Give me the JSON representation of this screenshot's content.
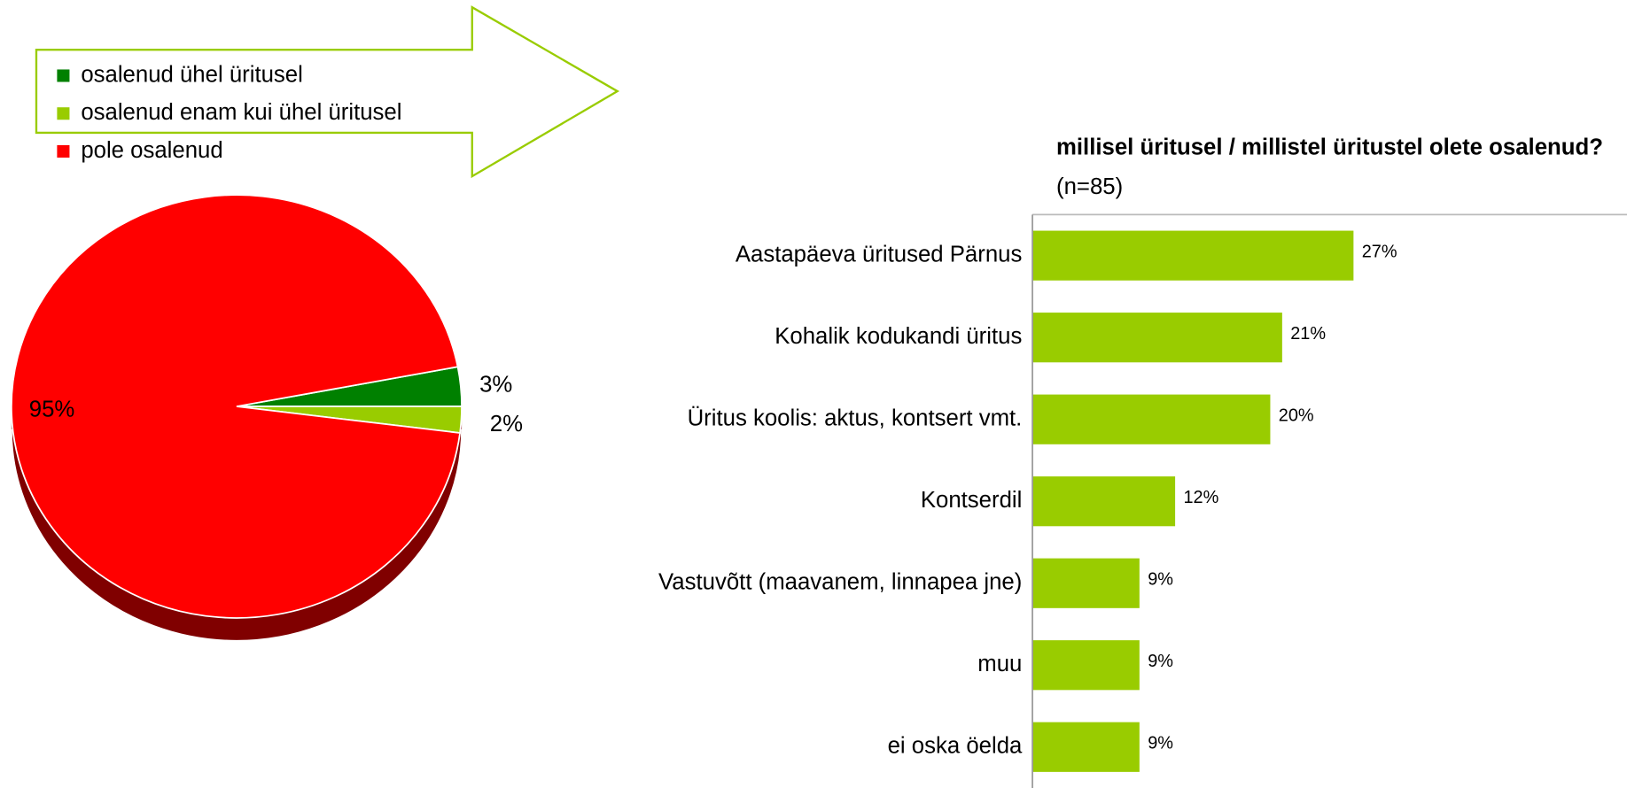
{
  "chart_data": [
    {
      "type": "pie",
      "categories": [
        "osalenud ühel üritusel",
        "osalenud enam kui ühel üritusel",
        "pole osalenud"
      ],
      "values": [
        3,
        2,
        95
      ],
      "value_labels": [
        "3%",
        "2%",
        "95%"
      ],
      "colors": [
        "#008000",
        "#99cc00",
        "#ff0000"
      ],
      "legend": "top-left"
    },
    {
      "type": "barh",
      "title": "millisel üritusel / millistel üritustel olete osalenud?",
      "subtitle": "(n=85)",
      "categories": [
        "Aastapäeva üritused Pärnus",
        "Kohalik kodukandi üritus",
        "Üritus koolis: aktus, kontsert vmt.",
        "Kontserdil",
        "Vastuvõtt (maavanem, linnapea jne)",
        "muu",
        "ei oska öelda"
      ],
      "values": [
        27,
        21,
        20,
        12,
        9,
        9,
        9
      ],
      "value_labels": [
        "27%",
        "21%",
        "20%",
        "12%",
        "9%",
        "9%",
        "9%"
      ],
      "color": "#99cc00",
      "xlim": [
        0,
        50
      ]
    }
  ]
}
